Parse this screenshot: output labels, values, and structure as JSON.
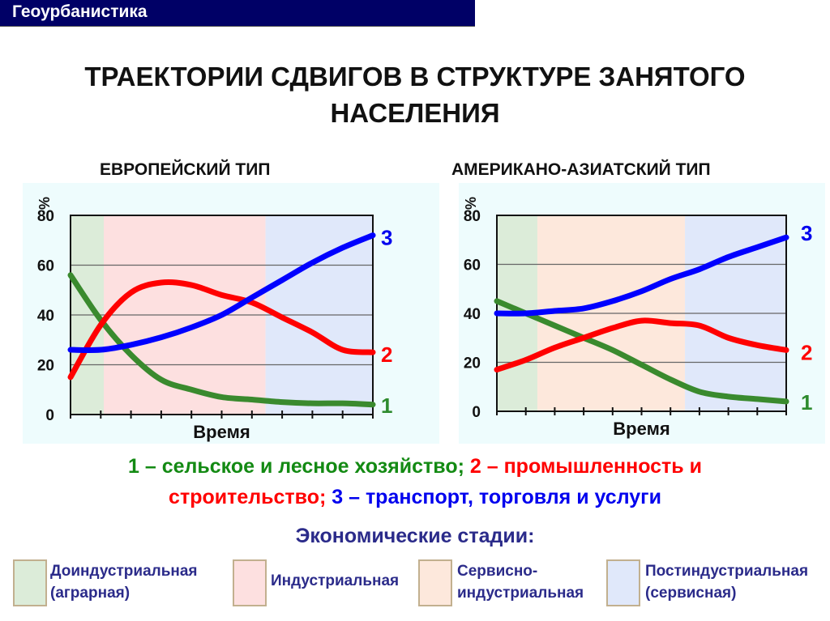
{
  "header": {
    "course": "Геоурбанистика"
  },
  "title": "ТРАЕКТОРИИ СДВИГОВ В СТРУКТУРЕ ЗАНЯТОГО НАСЕЛЕНИЯ",
  "title_lines": [
    "ТРАЕКТОРИИ СДВИГОВ В СТРУКТУРЕ ЗАНЯТОГО",
    "НАСЕЛЕНИЯ"
  ],
  "colors": {
    "agri": "#3a8a2e",
    "industry": "#ff0000",
    "services": "#0000ff",
    "stage_preindustrial": "#dcecd9",
    "stage_industrial": "#fde0e0",
    "stage_service_industrial": "#fde8dc",
    "stage_postindustrial": "#e0e8fa"
  },
  "chart_data": [
    {
      "type": "line",
      "title": "ЕВРОПЕЙСКИЙ ТИП",
      "xlabel": "Время",
      "ylabel": "%",
      "ylim": [
        0,
        80
      ],
      "yticks": [
        0,
        20,
        40,
        60,
        80
      ],
      "grid": true,
      "x": [
        0,
        1,
        2,
        3,
        4,
        5,
        6,
        7,
        8,
        9,
        10
      ],
      "series": [
        {
          "name": "1",
          "label": "сельское и лесное хозяйство",
          "values": [
            56,
            38,
            24,
            14,
            10,
            7,
            6,
            5,
            4.5,
            4.5,
            4
          ]
        },
        {
          "name": "2",
          "label": "промышленность и строительство",
          "values": [
            15,
            36,
            49,
            53,
            52,
            48,
            45,
            39,
            33,
            26,
            25
          ]
        },
        {
          "name": "3",
          "label": "транспорт, торговля и услуги",
          "values": [
            26,
            26,
            28,
            31,
            35,
            40,
            47,
            54,
            61,
            67,
            72
          ]
        }
      ],
      "stages": [
        {
          "name": "Доиндустриальная (аграрная)",
          "from": 0,
          "to": 1.1
        },
        {
          "name": "Индустриальная",
          "from": 1.1,
          "to": 6.45
        },
        {
          "name": "Постиндустриальная (сервисная)",
          "from": 6.45,
          "to": 10
        }
      ]
    },
    {
      "type": "line",
      "title": "АМЕРИКАНО-АЗИАТСКИЙ ТИП",
      "xlabel": "Время",
      "ylabel": "%",
      "ylim": [
        0,
        80
      ],
      "yticks": [
        0,
        20,
        40,
        60,
        80
      ],
      "grid": true,
      "x": [
        0,
        1,
        2,
        3,
        4,
        5,
        6,
        7,
        8,
        9,
        10
      ],
      "series": [
        {
          "name": "1",
          "label": "сельское и лесное хозяйство",
          "values": [
            45,
            40,
            35,
            30,
            25,
            19,
            13,
            8,
            6,
            5,
            4
          ]
        },
        {
          "name": "2",
          "label": "промышленность и строительство",
          "values": [
            17,
            21,
            26,
            30,
            34,
            37,
            36,
            35,
            30,
            27,
            25
          ]
        },
        {
          "name": "3",
          "label": "транспорт, торговля и услуги",
          "values": [
            40,
            40,
            41,
            42,
            45,
            49,
            54,
            58,
            63,
            67,
            71
          ]
        }
      ],
      "stages": [
        {
          "name": "Доиндустриальная (аграрная)",
          "from": 0,
          "to": 1.4
        },
        {
          "name": "Сервисно-индустриальная",
          "from": 1.4,
          "to": 6.5
        },
        {
          "name": "Постиндустриальная (сервисная)",
          "from": 6.5,
          "to": 10
        }
      ]
    }
  ],
  "legend": {
    "line1": [
      {
        "text": "1 – сельское и лесное хозяйство;",
        "color": "green"
      },
      {
        "text": " 2 – промышленность и",
        "color": "red"
      }
    ],
    "line2": [
      {
        "text": "строительство;",
        "color": "red"
      },
      {
        "text": " 3 – транспорт, торговля и услуги",
        "color": "blue"
      }
    ]
  },
  "stages_title": "Экономические стадии:",
  "stages": [
    {
      "line1": "Доиндустриальная",
      "line2": "(аграрная)"
    },
    {
      "line1": "Индустриальная",
      "line2": ""
    },
    {
      "line1": "Сервисно-",
      "line2": "индустриальная"
    },
    {
      "line1": "Постиндустриальная",
      "line2": "(сервисная)"
    }
  ]
}
